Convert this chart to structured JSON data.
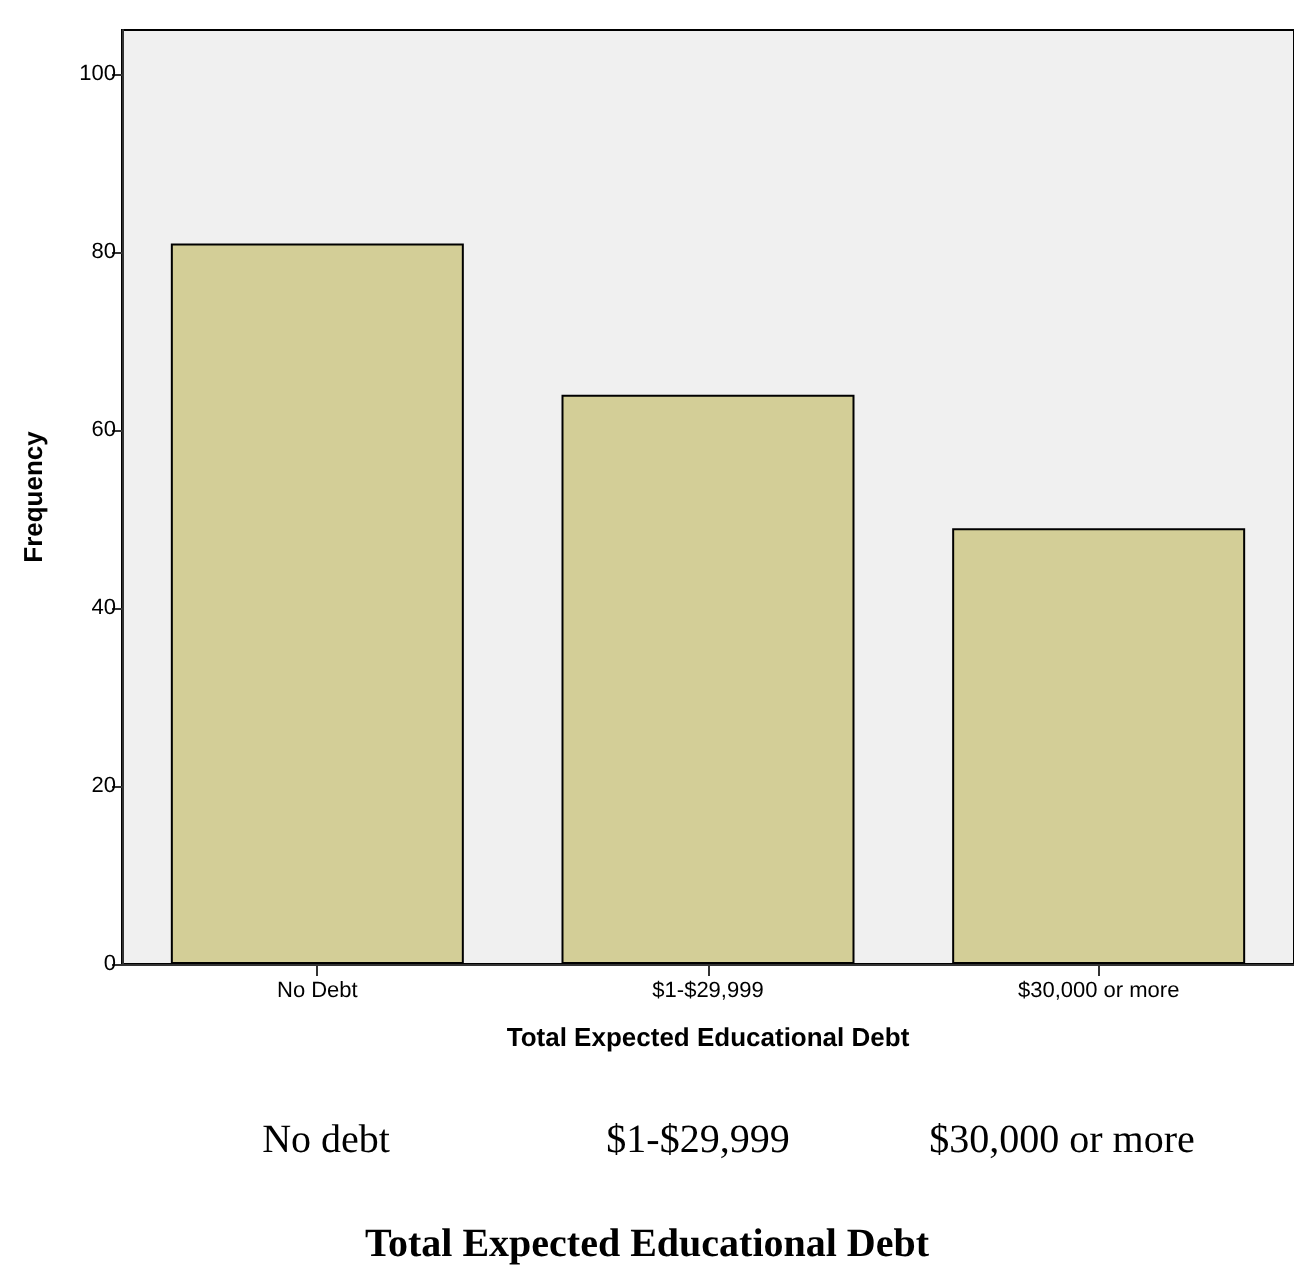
{
  "chart_data": {
    "type": "bar",
    "xlabel": "Total Expected Educational Debt",
    "ylabel": "Frequency",
    "categories": [
      "No Debt",
      "$1-$29,999",
      "$30,000 or more"
    ],
    "values": [
      81,
      64,
      49
    ],
    "color": "#d3ce97",
    "ylim": [
      0,
      105
    ],
    "yticks": [
      0,
      20,
      40,
      60,
      80,
      100
    ],
    "grid": false,
    "annotations": [
      "No debt",
      "$1-$29,999",
      "$30,000 or more",
      "Total Expected Educational Debt"
    ]
  }
}
